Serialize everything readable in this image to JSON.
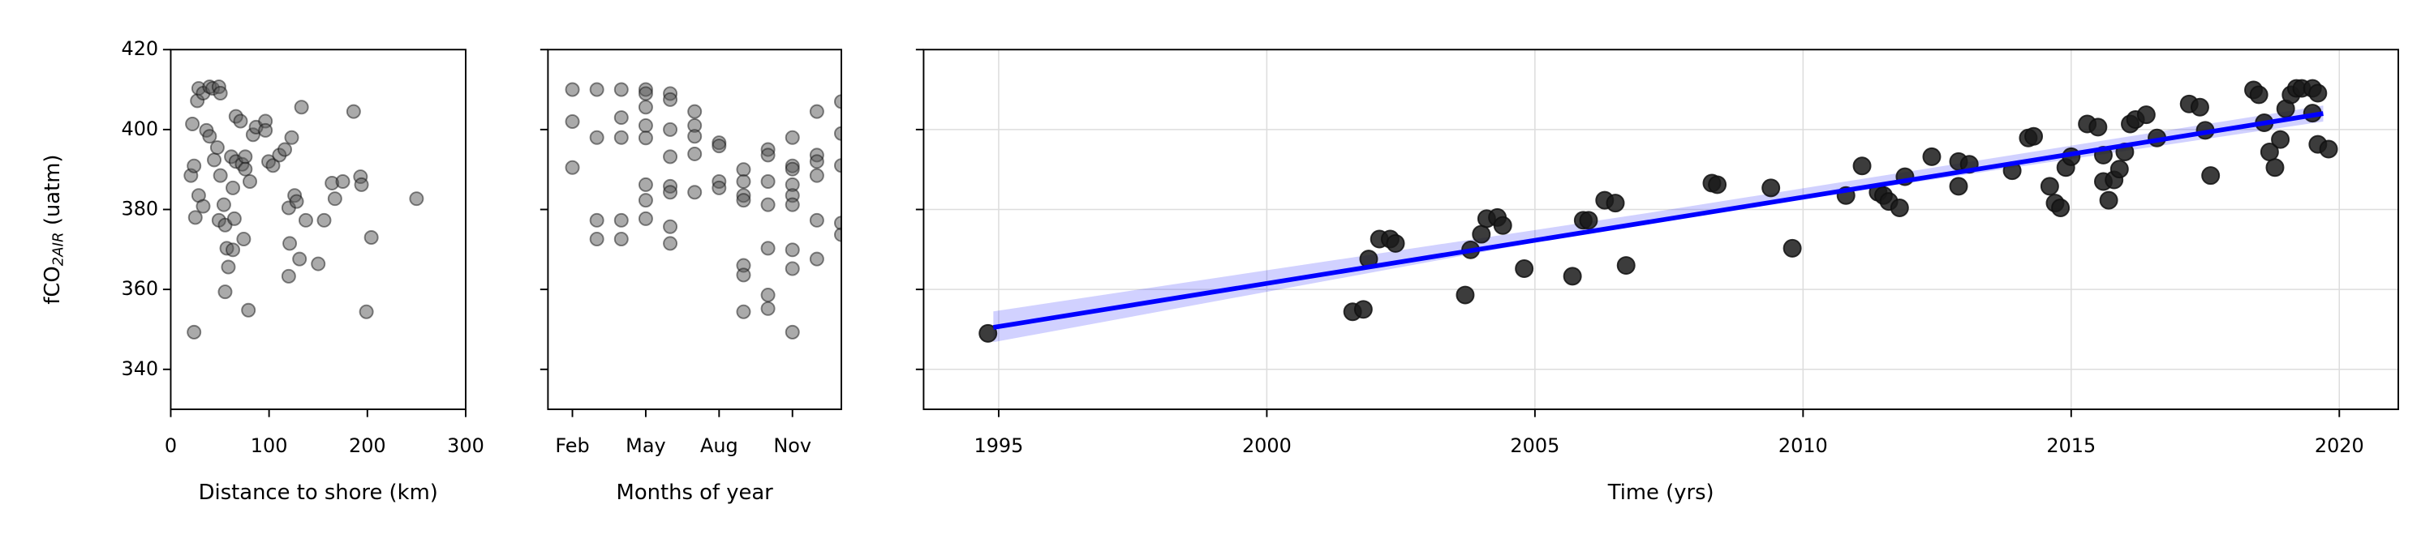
{
  "chart_data": [
    {
      "type": "scatter",
      "xlabel": "Distance to shore (km)",
      "ylabel": {
        "main": "fCO",
        "sub": "2AIR",
        "rest": " (uatm)"
      },
      "xlim": [
        0,
        300
      ],
      "xticks": [
        0,
        100,
        200,
        300
      ],
      "ylim": [
        330,
        420
      ],
      "yticks": [
        340,
        360,
        380,
        400,
        420
      ],
      "show_ytick_labels": true,
      "grid": false,
      "color": "#555555",
      "opacity": 0.5,
      "x": [
        23.7,
        20.5,
        23.7,
        22,
        27,
        28.4,
        33,
        39.5,
        42.6,
        49,
        50.5,
        25,
        28.4,
        33,
        36.3,
        39.5,
        44.2,
        47.4,
        50.5,
        49,
        54,
        55.3,
        57,
        58.6,
        55.3,
        61.6,
        66.3,
        63.2,
        64.7,
        63.2,
        66.3,
        71,
        72.6,
        75.8,
        75.8,
        74.2,
        79,
        80.5,
        83.7,
        86.8,
        96.3,
        96.3,
        99.5,
        104,
        110.5,
        116,
        123,
        133,
        120,
        126,
        128,
        121,
        120,
        131,
        137.4,
        150,
        156,
        164,
        175,
        167,
        186,
        193,
        194,
        199,
        204,
        250
      ],
      "y": [
        349.3,
        388.5,
        390.9,
        401.4,
        407.2,
        410.3,
        409.1,
        410.7,
        410.3,
        410.7,
        409.1,
        378,
        383.5,
        380.8,
        399.8,
        398.3,
        392.4,
        395.5,
        388.5,
        377.3,
        381.2,
        376.1,
        370.3,
        365.6,
        359.4,
        393.2,
        392,
        385.4,
        377.7,
        369.9,
        403.3,
        402.1,
        391.3,
        393.2,
        390.1,
        372.6,
        354.8,
        387,
        398.7,
        400.6,
        402.1,
        399.8,
        392,
        391,
        393.6,
        395,
        398,
        405.6,
        380.4,
        383.5,
        382,
        371.5,
        363.3,
        367.6,
        377.3,
        366.4,
        377.3,
        386.6,
        387,
        382.7,
        404.5,
        388.2,
        386.2,
        354.4,
        373,
        382.7
      ]
    },
    {
      "type": "scatter",
      "xlabel": "Months of year",
      "xlim": [
        1,
        13
      ],
      "xticks": [
        {
          "value": 2,
          "label": "Feb"
        },
        {
          "value": 5,
          "label": "May"
        },
        {
          "value": 8,
          "label": "Aug"
        },
        {
          "value": 11,
          "label": "Nov"
        }
      ],
      "ylim": [
        330,
        420
      ],
      "yticks": [
        340,
        360,
        380,
        400,
        420
      ],
      "show_ytick_labels": false,
      "grid": false,
      "color": "#555555",
      "opacity": 0.5,
      "x": [
        2,
        2,
        2,
        3,
        3,
        3,
        3,
        4,
        4,
        4,
        4,
        4,
        5,
        5,
        5,
        5,
        5,
        5,
        5,
        5,
        6,
        6,
        6,
        6,
        6,
        6,
        6,
        6,
        7,
        7,
        7,
        7,
        7,
        8,
        8,
        8,
        8,
        9,
        9,
        9,
        9,
        9,
        9,
        9,
        10,
        10,
        10,
        10,
        10,
        10,
        10,
        11,
        11,
        11,
        11,
        11,
        11,
        11,
        11,
        11,
        12,
        12,
        12,
        12,
        12,
        12,
        13,
        13,
        13,
        13,
        13
      ],
      "y": [
        410,
        402,
        390.5,
        410,
        398,
        377.3,
        372.6,
        410,
        403,
        398,
        377.3,
        372.6,
        410,
        409,
        405.6,
        401,
        397.9,
        386.2,
        382.3,
        377.7,
        409,
        407.5,
        400,
        393.2,
        385.8,
        384.3,
        375.7,
        371.5,
        404.5,
        401,
        398.3,
        393.9,
        384.3,
        396.7,
        395.9,
        387,
        385.4,
        390,
        387,
        383.5,
        382.3,
        366,
        363.6,
        354.4,
        395,
        393.6,
        387,
        381.2,
        370.3,
        358.6,
        355.2,
        398,
        390.9,
        390.1,
        386.2,
        383.5,
        381.2,
        369.9,
        365.2,
        349.3,
        404.5,
        393.6,
        392,
        388.5,
        377.3,
        367.6,
        407,
        399,
        391,
        376.6,
        373.7
      ]
    },
    {
      "type": "scatter",
      "xlabel": "Time (yrs)",
      "xlim": [
        1993.6,
        2021.1
      ],
      "xticks": [
        1995,
        2000,
        2005,
        2010,
        2015,
        2020
      ],
      "ylim": [
        330,
        420
      ],
      "yticks": [
        340,
        360,
        380,
        400,
        420
      ],
      "show_ytick_labels": false,
      "grid": true,
      "color": "#1a1a1a",
      "opacity": 0.85,
      "x": [
        1994.8,
        2001.6,
        2001.8,
        2001.9,
        2002.1,
        2002.3,
        2002.4,
        2003.7,
        2003.8,
        2004.0,
        2004.1,
        2004.3,
        2004.4,
        2004.8,
        2005.7,
        2005.9,
        2006.0,
        2006.3,
        2006.5,
        2006.7,
        2008.3,
        2008.4,
        2009.4,
        2009.8,
        2010.8,
        2011.1,
        2011.4,
        2011.5,
        2011.6,
        2011.8,
        2011.9,
        2012.4,
        2012.9,
        2012.9,
        2013.1,
        2013.9,
        2014.2,
        2014.3,
        2014.6,
        2014.7,
        2014.8,
        2014.9,
        2015.0,
        2015.3,
        2015.5,
        2015.6,
        2015.6,
        2015.7,
        2015.8,
        2015.9,
        2016.0,
        2016.1,
        2016.2,
        2016.4,
        2016.6,
        2017.2,
        2017.4,
        2017.5,
        2017.6,
        2018.4,
        2018.5,
        2018.6,
        2018.7,
        2018.8,
        2018.9,
        2019.0,
        2019.1,
        2019.2,
        2019.3,
        2019.5,
        2019.6,
        2019.5,
        2019.6,
        2019.8
      ],
      "y": [
        349,
        354.4,
        355,
        367.6,
        372.6,
        372.6,
        371.5,
        358.6,
        369.9,
        373.8,
        377.7,
        378,
        376,
        365.2,
        363.3,
        377.3,
        377.3,
        382.3,
        381.6,
        366,
        386.6,
        386.2,
        385.4,
        370.3,
        383.5,
        390.9,
        384.3,
        383.5,
        382,
        380.4,
        388.2,
        393.2,
        385.8,
        392,
        391.3,
        389.7,
        397.9,
        398.3,
        385.8,
        381.6,
        380.4,
        390.5,
        393.2,
        401.4,
        400.6,
        393.6,
        387,
        382.3,
        387.4,
        390.1,
        394.4,
        401.4,
        402.5,
        403.7,
        397.9,
        406.4,
        405.6,
        399.8,
        388.5,
        409.9,
        408.7,
        401.7,
        394.4,
        390.5,
        397.5,
        405.2,
        408.7,
        410.3,
        410.3,
        410.3,
        409.1,
        404.1,
        396.3,
        395.1
      ],
      "fit": {
        "x": [
          1994.9,
          2019.7
        ],
        "y": [
          350.5,
          404
        ],
        "color": "#0000ff"
      },
      "band": {
        "x": [
          1994.9,
          2007,
          2019.7
        ],
        "lower": [
          346.8,
          376.7,
          402
        ],
        "upper": [
          354.5,
          378.9,
          406
        ],
        "color": "#0000ff",
        "opacity": 0.18
      }
    }
  ]
}
